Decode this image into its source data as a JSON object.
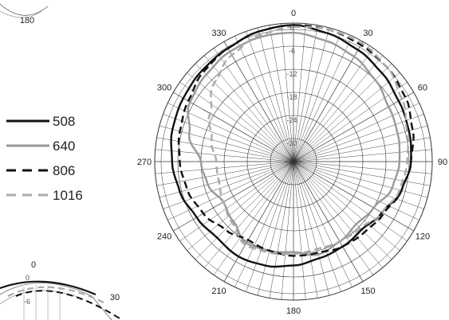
{
  "chart_data": {
    "type": "polar",
    "angle_labels": [
      {
        "deg": 0,
        "label": "0"
      },
      {
        "deg": 30,
        "label": "30"
      },
      {
        "deg": 60,
        "label": "60"
      },
      {
        "deg": 90,
        "label": "90"
      },
      {
        "deg": 120,
        "label": "120"
      },
      {
        "deg": 150,
        "label": "150"
      },
      {
        "deg": 180,
        "label": "180"
      },
      {
        "deg": 210,
        "label": "210"
      },
      {
        "deg": 240,
        "label": "240"
      },
      {
        "deg": 270,
        "label": "270"
      },
      {
        "deg": 300,
        "label": "300"
      },
      {
        "deg": 330,
        "label": "330"
      }
    ],
    "ring_labels": [
      "0",
      "-6",
      "-12",
      "-18",
      "-24",
      "-30"
    ],
    "radial_range_db": [
      -36,
      0
    ],
    "grid": true,
    "legend_position": "left",
    "series": [
      {
        "name": "508",
        "color": "#111111",
        "dash": "solid",
        "angles": [
          0,
          15,
          30,
          45,
          60,
          75,
          90,
          105,
          120,
          135,
          150,
          165,
          180,
          195,
          210,
          225,
          240,
          255,
          270,
          285,
          300,
          315,
          330,
          345
        ],
        "values_db": [
          -0.5,
          -1.5,
          -2.5,
          -3.5,
          -4.5,
          -5.0,
          -5.5,
          -7.0,
          -9.5,
          -11.0,
          -10.5,
          -10.0,
          -9.0,
          -8.0,
          -7.5,
          -8.0,
          -7.0,
          -5.5,
          -4.5,
          -3.5,
          -3.0,
          -2.5,
          -2.0,
          -1.0
        ]
      },
      {
        "name": "640",
        "color": "#999999",
        "dash": "solid",
        "angles": [
          0,
          15,
          30,
          45,
          60,
          75,
          90,
          105,
          120,
          135,
          150,
          165,
          180,
          195,
          210,
          225,
          240,
          255,
          270,
          285,
          300,
          315,
          330,
          345
        ],
        "values_db": [
          -2.5,
          -3.5,
          -4.5,
          -6.0,
          -7.5,
          -8.0,
          -8.5,
          -9.5,
          -12.0,
          -13.0,
          -12.0,
          -11.0,
          -12.5,
          -12.0,
          -11.5,
          -14.0,
          -15.0,
          -13.0,
          -12.0,
          -8.0,
          -5.0,
          -4.0,
          -3.0,
          -2.5
        ]
      },
      {
        "name": "806",
        "color": "#111111",
        "dash": "dash",
        "angles": [
          0,
          15,
          30,
          45,
          60,
          75,
          90,
          105,
          120,
          135,
          150,
          165,
          180,
          195,
          210,
          225,
          240,
          255,
          270,
          285,
          300,
          315,
          330,
          345
        ],
        "values_db": [
          -0.5,
          -0.5,
          -1.0,
          -1.5,
          -2.5,
          -4.0,
          -5.5,
          -7.0,
          -9.0,
          -10.0,
          -10.5,
          -11.5,
          -11.5,
          -12.0,
          -12.5,
          -11.0,
          -9.0,
          -7.5,
          -6.5,
          -5.5,
          -4.5,
          -3.0,
          -2.0,
          -1.0
        ]
      },
      {
        "name": "1016",
        "color": "#aaaaaa",
        "dash": "dash",
        "angles": [
          0,
          15,
          30,
          45,
          60,
          75,
          90,
          105,
          120,
          135,
          150,
          165,
          180,
          195,
          210,
          225,
          240,
          255,
          270,
          285,
          300,
          315,
          330,
          345
        ],
        "values_db": [
          -1.0,
          -0.5,
          -0.5,
          -1.5,
          -3.5,
          -5.5,
          -6.5,
          -7.5,
          -9.5,
          -11.5,
          -12.0,
          -12.5,
          -12.0,
          -11.5,
          -11.0,
          -13.5,
          -15.0,
          -16.0,
          -16.0,
          -14.0,
          -11.0,
          -7.0,
          -4.0,
          -2.0
        ]
      }
    ]
  },
  "partial_charts": {
    "top_left_label": "180",
    "bottom_left_zero": "0",
    "bottom_left_thirty": "30",
    "bottom_left_rings": [
      "0",
      "-6"
    ]
  }
}
